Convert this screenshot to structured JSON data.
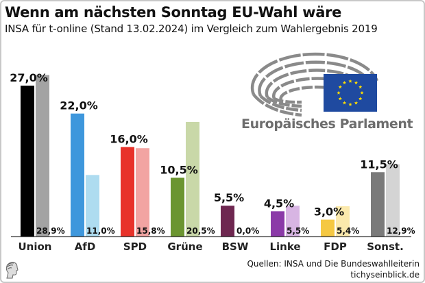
{
  "header": {
    "title": "Wenn am nächsten Sonntag EU-Wahl wäre",
    "subtitle": "INSA für t-online (Stand 13.02.2024) im Vergleich zum Wahlergebnis 2019"
  },
  "logo": {
    "text": "Europäisches Parlament",
    "icon": "european-parliament-hemicycle-icon",
    "flag": "eu-flag-icon"
  },
  "footer": {
    "sources": "Quellen: INSA und Die Bundeswahlleiterin",
    "site": "tichyseinblick.de",
    "brand_icon": "profile-head-icon"
  },
  "chart_data": {
    "type": "bar",
    "title": "Wenn am nächsten Sonntag EU-Wahl wäre",
    "subtitle": "INSA für t-online (Stand 13.02.2024) im Vergleich zum Wahlergebnis 2019",
    "xlabel": "",
    "ylabel": "",
    "ylim": [
      0,
      30
    ],
    "grid": false,
    "categories": [
      "Union",
      "AfD",
      "SPD",
      "Grüne",
      "BSW",
      "Linke",
      "FDP",
      "Sonst."
    ],
    "series": [
      {
        "name": "INSA 13.02.2024",
        "values": [
          27.0,
          22.0,
          16.0,
          10.5,
          5.5,
          4.5,
          3.0,
          11.5
        ],
        "labels": [
          "27,0%",
          "22,0%",
          "16,0%",
          "10,5%",
          "5,5%",
          "4,5%",
          "3,0%",
          "11,5%"
        ],
        "colors": [
          "#000000",
          "#3e97dc",
          "#e8322a",
          "#6b9530",
          "#6e2750",
          "#8b3aa8",
          "#f5c842",
          "#7a7a7a"
        ]
      },
      {
        "name": "Wahlergebnis 2019",
        "values": [
          28.9,
          11.0,
          15.8,
          20.5,
          0.0,
          5.5,
          5.4,
          12.9
        ],
        "labels": [
          "28,9%",
          "11,0%",
          "15,8%",
          "20,5%",
          "0,0%",
          "5,5%",
          "5,4%",
          "12,9%"
        ],
        "colors": [
          "#a3a3a3",
          "#aedcf0",
          "#f2a4a2",
          "#c9d8a8",
          "#d9c3d2",
          "#d8b5e3",
          "#fbe9ac",
          "#d4d4d4"
        ]
      }
    ]
  }
}
